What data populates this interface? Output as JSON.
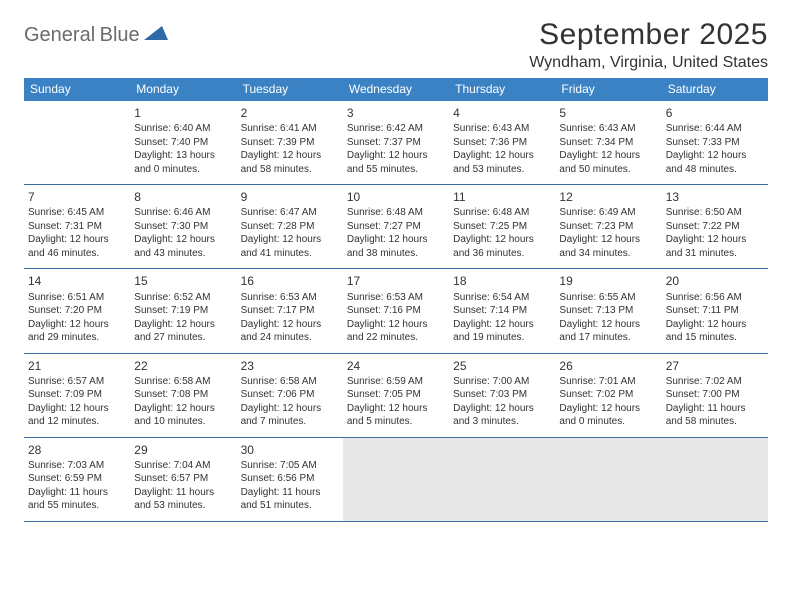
{
  "logo": {
    "word1": "General",
    "word2": "Blue"
  },
  "title": "September 2025",
  "location": "Wyndham, Virginia, United States",
  "colors": {
    "header_bg": "#3b82c4",
    "header_text": "#ffffff",
    "rule": "#3b6ea0",
    "text": "#333333",
    "logo_gray": "#6b6b6b",
    "logo_blue": "#3b82c4",
    "shaded": "#e8e8e8"
  },
  "day_names": [
    "Sunday",
    "Monday",
    "Tuesday",
    "Wednesday",
    "Thursday",
    "Friday",
    "Saturday"
  ],
  "weeks": [
    [
      {
        "blank": true
      },
      {
        "n": "1",
        "sr": "6:40 AM",
        "ss": "7:40 PM",
        "dl": "13 hours and 0 minutes."
      },
      {
        "n": "2",
        "sr": "6:41 AM",
        "ss": "7:39 PM",
        "dl": "12 hours and 58 minutes."
      },
      {
        "n": "3",
        "sr": "6:42 AM",
        "ss": "7:37 PM",
        "dl": "12 hours and 55 minutes."
      },
      {
        "n": "4",
        "sr": "6:43 AM",
        "ss": "7:36 PM",
        "dl": "12 hours and 53 minutes."
      },
      {
        "n": "5",
        "sr": "6:43 AM",
        "ss": "7:34 PM",
        "dl": "12 hours and 50 minutes."
      },
      {
        "n": "6",
        "sr": "6:44 AM",
        "ss": "7:33 PM",
        "dl": "12 hours and 48 minutes."
      }
    ],
    [
      {
        "n": "7",
        "sr": "6:45 AM",
        "ss": "7:31 PM",
        "dl": "12 hours and 46 minutes."
      },
      {
        "n": "8",
        "sr": "6:46 AM",
        "ss": "7:30 PM",
        "dl": "12 hours and 43 minutes."
      },
      {
        "n": "9",
        "sr": "6:47 AM",
        "ss": "7:28 PM",
        "dl": "12 hours and 41 minutes."
      },
      {
        "n": "10",
        "sr": "6:48 AM",
        "ss": "7:27 PM",
        "dl": "12 hours and 38 minutes."
      },
      {
        "n": "11",
        "sr": "6:48 AM",
        "ss": "7:25 PM",
        "dl": "12 hours and 36 minutes."
      },
      {
        "n": "12",
        "sr": "6:49 AM",
        "ss": "7:23 PM",
        "dl": "12 hours and 34 minutes."
      },
      {
        "n": "13",
        "sr": "6:50 AM",
        "ss": "7:22 PM",
        "dl": "12 hours and 31 minutes."
      }
    ],
    [
      {
        "n": "14",
        "sr": "6:51 AM",
        "ss": "7:20 PM",
        "dl": "12 hours and 29 minutes."
      },
      {
        "n": "15",
        "sr": "6:52 AM",
        "ss": "7:19 PM",
        "dl": "12 hours and 27 minutes."
      },
      {
        "n": "16",
        "sr": "6:53 AM",
        "ss": "7:17 PM",
        "dl": "12 hours and 24 minutes."
      },
      {
        "n": "17",
        "sr": "6:53 AM",
        "ss": "7:16 PM",
        "dl": "12 hours and 22 minutes."
      },
      {
        "n": "18",
        "sr": "6:54 AM",
        "ss": "7:14 PM",
        "dl": "12 hours and 19 minutes."
      },
      {
        "n": "19",
        "sr": "6:55 AM",
        "ss": "7:13 PM",
        "dl": "12 hours and 17 minutes."
      },
      {
        "n": "20",
        "sr": "6:56 AM",
        "ss": "7:11 PM",
        "dl": "12 hours and 15 minutes."
      }
    ],
    [
      {
        "n": "21",
        "sr": "6:57 AM",
        "ss": "7:09 PM",
        "dl": "12 hours and 12 minutes."
      },
      {
        "n": "22",
        "sr": "6:58 AM",
        "ss": "7:08 PM",
        "dl": "12 hours and 10 minutes."
      },
      {
        "n": "23",
        "sr": "6:58 AM",
        "ss": "7:06 PM",
        "dl": "12 hours and 7 minutes."
      },
      {
        "n": "24",
        "sr": "6:59 AM",
        "ss": "7:05 PM",
        "dl": "12 hours and 5 minutes."
      },
      {
        "n": "25",
        "sr": "7:00 AM",
        "ss": "7:03 PM",
        "dl": "12 hours and 3 minutes."
      },
      {
        "n": "26",
        "sr": "7:01 AM",
        "ss": "7:02 PM",
        "dl": "12 hours and 0 minutes."
      },
      {
        "n": "27",
        "sr": "7:02 AM",
        "ss": "7:00 PM",
        "dl": "11 hours and 58 minutes."
      }
    ],
    [
      {
        "n": "28",
        "sr": "7:03 AM",
        "ss": "6:59 PM",
        "dl": "11 hours and 55 minutes."
      },
      {
        "n": "29",
        "sr": "7:04 AM",
        "ss": "6:57 PM",
        "dl": "11 hours and 53 minutes."
      },
      {
        "n": "30",
        "sr": "7:05 AM",
        "ss": "6:56 PM",
        "dl": "11 hours and 51 minutes."
      },
      {
        "blank": true,
        "shaded": true
      },
      {
        "blank": true,
        "shaded": true
      },
      {
        "blank": true,
        "shaded": true
      },
      {
        "blank": true,
        "shaded": true
      }
    ]
  ],
  "labels": {
    "sunrise": "Sunrise:",
    "sunset": "Sunset:",
    "daylight": "Daylight:"
  }
}
